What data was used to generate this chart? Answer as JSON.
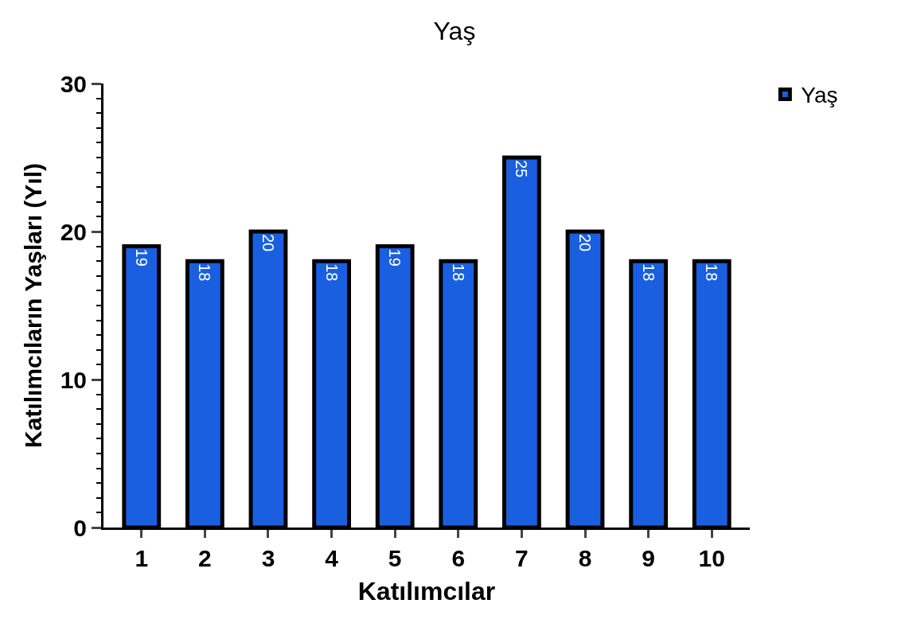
{
  "chart_data": {
    "type": "bar",
    "title": "Yaş",
    "xlabel": "Katılımcılar",
    "ylabel": "Katılımcıların Yaşları (Yıl)",
    "categories": [
      "1",
      "2",
      "3",
      "4",
      "5",
      "6",
      "7",
      "8",
      "9",
      "10"
    ],
    "series": [
      {
        "name": "Yaş",
        "color": "#1a5fe0",
        "values": [
          19,
          18,
          20,
          18,
          19,
          18,
          25,
          20,
          18,
          18
        ]
      }
    ],
    "ylim": [
      0,
      30
    ],
    "yticks": [
      0,
      {
        "value": 1,
        "label": null
      },
      {
        "value": 2,
        "label": null
      },
      {
        "value": 3,
        "label": null
      },
      {
        "value": 4,
        "label": null
      },
      {
        "value": 5,
        "label": null
      },
      {
        "value": 6,
        "label": null
      },
      {
        "value": 7,
        "label": null
      },
      {
        "value": 8,
        "label": null
      },
      {
        "value": 9,
        "label": null
      },
      10,
      {
        "value": 11,
        "label": null
      },
      {
        "value": 12,
        "label": null
      },
      {
        "value": 13,
        "label": null
      },
      {
        "value": 14,
        "label": null
      },
      {
        "value": 15,
        "label": null
      },
      {
        "value": 16,
        "label": null
      },
      {
        "value": 17,
        "label": null
      },
      {
        "value": 18,
        "label": null
      },
      {
        "value": 19,
        "label": null
      },
      20,
      {
        "value": 21,
        "label": null
      },
      {
        "value": 22,
        "label": null
      },
      {
        "value": 23,
        "label": null
      },
      {
        "value": 24,
        "label": null
      },
      {
        "value": 25,
        "label": null
      },
      {
        "value": 26,
        "label": null
      },
      {
        "value": 27,
        "label": null
      },
      {
        "value": 28,
        "label": null
      },
      {
        "value": 29,
        "label": null
      },
      30
    ],
    "data_labels": true,
    "legend": "top right"
  }
}
